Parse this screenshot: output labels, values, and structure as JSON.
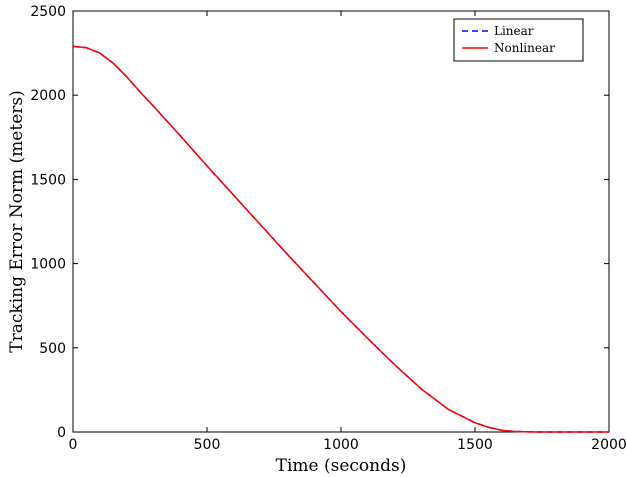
{
  "chart_data": {
    "type": "line",
    "title": "",
    "xlabel": "Time (seconds)",
    "ylabel": "Tracking Error Norm (meters)",
    "xlim": [
      0,
      2000
    ],
    "ylim": [
      0,
      2500
    ],
    "xticks": [
      "0",
      "500",
      "1000",
      "1500",
      "2000"
    ],
    "yticks": [
      "0",
      "500",
      "1000",
      "1500",
      "2000",
      "2500"
    ],
    "grid": false,
    "legend_position": "top-right",
    "series": [
      {
        "name": "Linear",
        "style": "dashed",
        "color": "#0000ff",
        "x": [
          0,
          50,
          100,
          150,
          200,
          250,
          300,
          400,
          500,
          600,
          700,
          800,
          900,
          1000,
          1100,
          1200,
          1300,
          1400,
          1500,
          1550,
          1600,
          1650,
          1700,
          1730,
          1750,
          1800,
          1900,
          2000
        ],
        "y": [
          2290,
          2282,
          2250,
          2190,
          2110,
          2020,
          1935,
          1760,
          1580,
          1405,
          1230,
          1055,
          885,
          715,
          555,
          400,
          255,
          135,
          55,
          28,
          10,
          3,
          1,
          0,
          0,
          0,
          0,
          0
        ]
      },
      {
        "name": "Nonlinear",
        "style": "solid",
        "color": "#ff0000",
        "x": [
          0,
          50,
          100,
          150,
          200,
          250,
          300,
          400,
          500,
          600,
          700,
          800,
          900,
          1000,
          1100,
          1200,
          1300,
          1400,
          1500,
          1550,
          1600,
          1650,
          1700,
          1730,
          1750,
          1800,
          1900,
          2000
        ],
        "y": [
          2290,
          2282,
          2250,
          2190,
          2110,
          2020,
          1935,
          1760,
          1580,
          1405,
          1230,
          1055,
          885,
          715,
          555,
          400,
          255,
          135,
          55,
          28,
          10,
          3,
          1,
          0,
          0,
          0,
          0,
          0
        ]
      }
    ]
  }
}
